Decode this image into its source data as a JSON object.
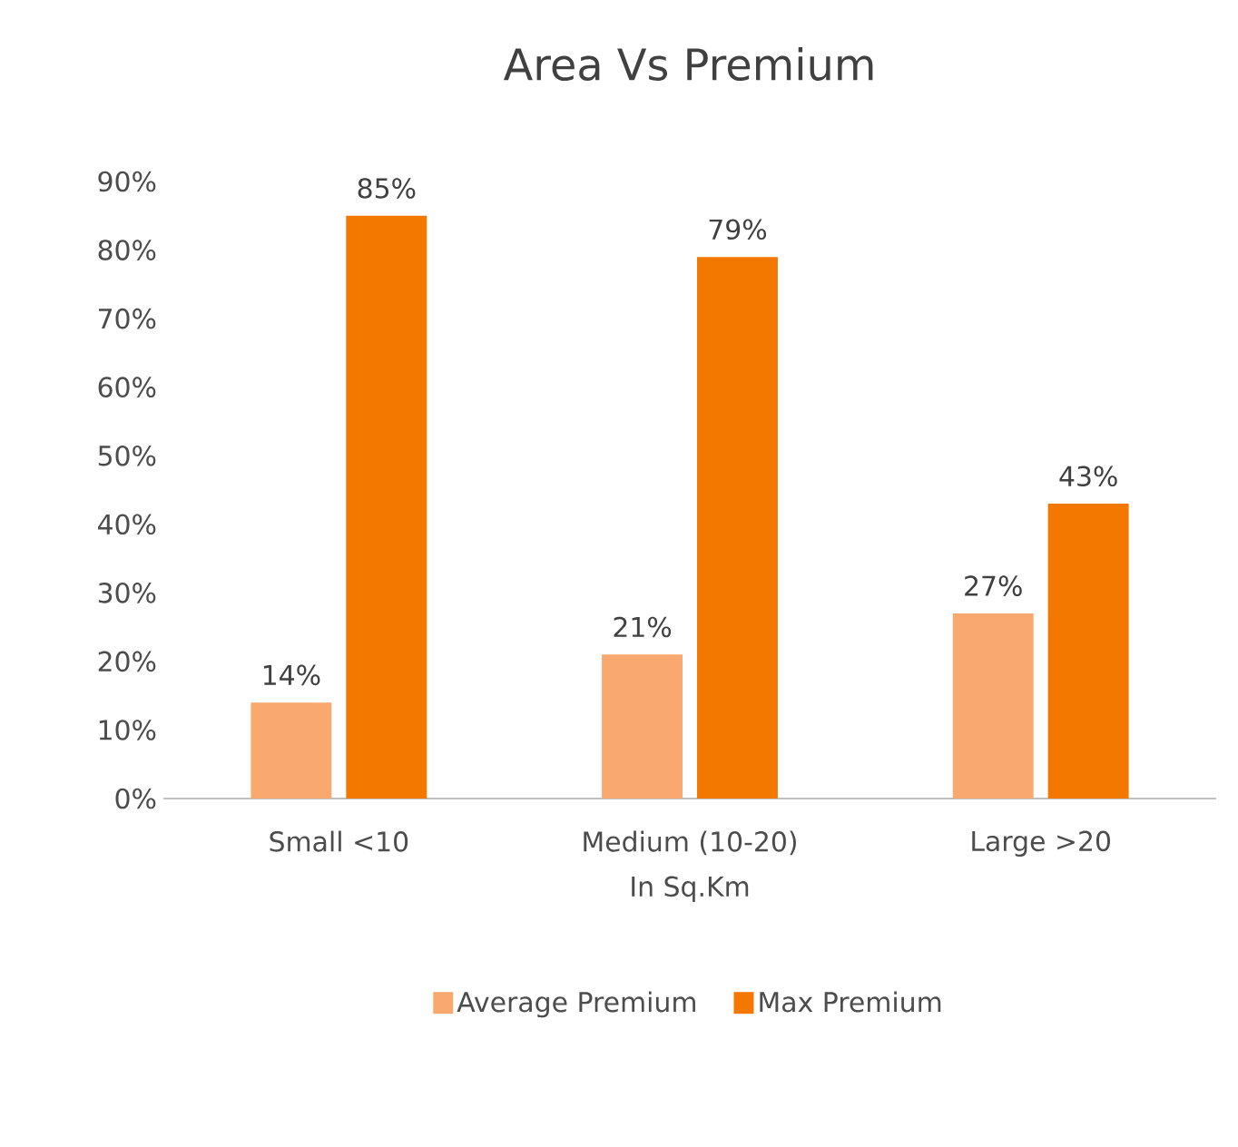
{
  "chart_data": {
    "type": "bar",
    "title": "Area Vs Premium",
    "xlabel": "In Sq.Km",
    "categories": [
      "Small <10",
      "Medium (10-20)",
      "Large >20"
    ],
    "series": [
      {
        "name": "Average Premium",
        "color": "#f9a870",
        "values": [
          14,
          21,
          27
        ],
        "value_labels": [
          "14%",
          "21%",
          "27%"
        ]
      },
      {
        "name": "Max Premium",
        "color": "#f27800",
        "values": [
          85,
          79,
          43
        ],
        "value_labels": [
          "85%",
          "79%",
          "43%"
        ]
      }
    ],
    "ylim": [
      0,
      90
    ],
    "yticks": [
      {
        "value": 0,
        "label": "0%"
      },
      {
        "value": 10,
        "label": "10%"
      },
      {
        "value": 20,
        "label": "20%"
      },
      {
        "value": 30,
        "label": "30%"
      },
      {
        "value": 40,
        "label": "40%"
      },
      {
        "value": 50,
        "label": "50%"
      },
      {
        "value": 60,
        "label": "60%"
      },
      {
        "value": 70,
        "label": "70%"
      },
      {
        "value": 80,
        "label": "80%"
      },
      {
        "value": 90,
        "label": "90%"
      }
    ],
    "legend": "bottom"
  }
}
